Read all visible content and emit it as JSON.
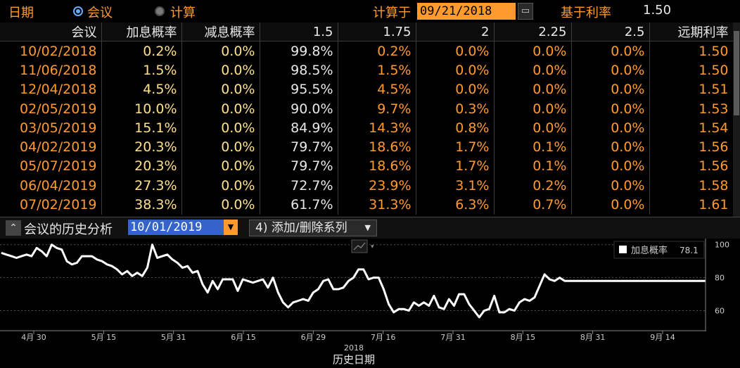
{
  "header": {
    "date_label": "日期",
    "radio_meeting": "会议",
    "radio_calc": "计算",
    "calc_label": "计算于",
    "calc_date": "09/21/2018",
    "base_rate_label": "基于利率",
    "base_rate": "1.50"
  },
  "table": {
    "columns": [
      "会议",
      "加息概率",
      "减息概率",
      "1.5",
      "1.75",
      "2",
      "2.25",
      "2.5",
      "远期利率"
    ],
    "rows": [
      [
        "10/02/2018",
        "0.2%",
        "0.0%",
        "99.8%",
        "0.2%",
        "0.0%",
        "0.0%",
        "0.0%",
        "1.50"
      ],
      [
        "11/06/2018",
        "1.5%",
        "0.0%",
        "98.5%",
        "1.5%",
        "0.0%",
        "0.0%",
        "0.0%",
        "1.50"
      ],
      [
        "12/04/2018",
        "4.5%",
        "0.0%",
        "95.5%",
        "4.5%",
        "0.0%",
        "0.0%",
        "0.0%",
        "1.51"
      ],
      [
        "02/05/2019",
        "10.0%",
        "0.0%",
        "90.0%",
        "9.7%",
        "0.3%",
        "0.0%",
        "0.0%",
        "1.53"
      ],
      [
        "03/05/2019",
        "15.1%",
        "0.0%",
        "84.9%",
        "14.3%",
        "0.8%",
        "0.0%",
        "0.0%",
        "1.54"
      ],
      [
        "04/02/2019",
        "20.3%",
        "0.0%",
        "79.7%",
        "18.6%",
        "1.7%",
        "0.1%",
        "0.0%",
        "1.56"
      ],
      [
        "05/07/2019",
        "20.3%",
        "0.0%",
        "79.7%",
        "18.6%",
        "1.7%",
        "0.1%",
        "0.0%",
        "1.56"
      ],
      [
        "06/04/2019",
        "27.3%",
        "0.0%",
        "72.7%",
        "23.9%",
        "3.1%",
        "0.2%",
        "0.0%",
        "1.58"
      ],
      [
        "07/02/2019",
        "38.3%",
        "0.0%",
        "61.7%",
        "31.3%",
        "6.3%",
        "0.7%",
        "0.0%",
        "1.61"
      ]
    ]
  },
  "history_bar": {
    "title": "会议的历史分析",
    "date": "10/01/2019",
    "series_button": "添加/删除系列"
  },
  "chart_data": {
    "type": "line",
    "xlabel": "历史日期",
    "year_label": "2018",
    "ylim": [
      50,
      102
    ],
    "yticks": [
      60,
      80,
      100
    ],
    "grid": true,
    "legend": {
      "name": "加息概率",
      "value": "78.1",
      "placement": "top-right"
    },
    "xticks": [
      "4月 30",
      "5月 15",
      "5月 31",
      "6月 15",
      "6月 29",
      "7月 16",
      "7月 31",
      "8月 15",
      "8月 31",
      "9月 14"
    ],
    "series": [
      {
        "name": "加息概率",
        "color": "#ffffff",
        "x": [
          0,
          1,
          2,
          3,
          4,
          5,
          6,
          7,
          8,
          9,
          10,
          11,
          12,
          13,
          14,
          15,
          16,
          17,
          18,
          19,
          20,
          21,
          22,
          23,
          24,
          25,
          26,
          27,
          28,
          29,
          30,
          31,
          32,
          33,
          34,
          35,
          36,
          37,
          38,
          39,
          40,
          41,
          42,
          43,
          44,
          45,
          46,
          47,
          48,
          49,
          50,
          51,
          52,
          53,
          54,
          55,
          56,
          57,
          58,
          59,
          60,
          61,
          62,
          63,
          64,
          65,
          66,
          67,
          68,
          69,
          70,
          71,
          72,
          73,
          74,
          75,
          76,
          77,
          78,
          79,
          80,
          81,
          82,
          83,
          84,
          85,
          86,
          87,
          88,
          89,
          90,
          91,
          92,
          93,
          94,
          95,
          96,
          97,
          98,
          99,
          100,
          101,
          102,
          103,
          104,
          105,
          106,
          107,
          108,
          109,
          110,
          111,
          112,
          113,
          114,
          115,
          116,
          117,
          118,
          119,
          120,
          121,
          122,
          123,
          124,
          125,
          126,
          127,
          128,
          129,
          130,
          131,
          132,
          133,
          134,
          135,
          136,
          137,
          138,
          139,
          140
        ],
        "values": [
          95,
          94,
          93,
          92,
          93,
          94,
          93,
          98,
          96,
          93,
          100,
          98,
          97,
          90,
          88,
          89,
          93,
          93,
          93,
          91,
          90,
          88,
          87,
          85,
          82,
          84,
          81,
          83,
          81,
          86,
          100,
          92,
          93,
          94,
          91,
          89,
          86,
          87,
          83,
          84,
          76,
          71,
          78,
          73,
          79,
          79,
          79,
          72,
          79,
          78,
          77,
          78,
          79,
          74,
          80,
          71,
          65,
          62,
          65,
          66,
          67,
          66,
          71,
          73,
          78,
          79,
          73,
          73,
          74,
          78,
          80,
          85,
          85,
          79,
          80,
          80,
          73,
          64,
          59,
          61,
          61,
          60,
          65,
          63,
          65,
          63,
          69,
          62,
          61,
          67,
          63,
          70,
          70,
          64,
          60,
          56,
          60,
          61,
          69,
          59,
          59,
          61,
          60,
          65,
          67,
          66,
          68,
          75,
          82,
          79,
          78,
          80,
          78,
          78,
          78,
          78,
          78,
          78,
          78,
          78,
          78,
          78,
          78,
          78,
          78,
          78,
          78,
          78,
          78,
          78,
          78,
          78,
          78,
          78,
          78,
          78,
          78,
          78,
          78,
          78,
          78
        ]
      }
    ]
  }
}
